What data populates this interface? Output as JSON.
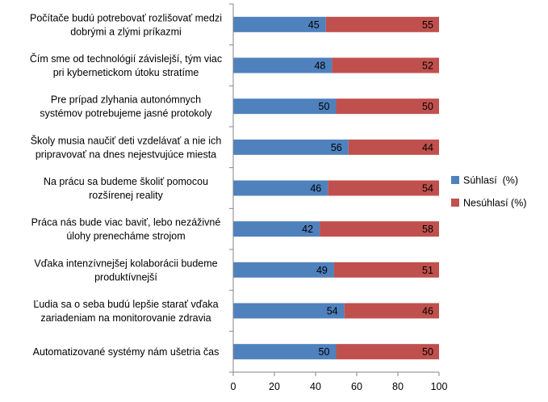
{
  "chart_data": {
    "type": "bar",
    "orientation": "horizontal",
    "stacked": true,
    "categories": [
      [
        "Počítače budú potrebovať rozlišovať medzi",
        "dobrými a zlými príkazmi"
      ],
      [
        "Čím sme od technológií závislejší, tým viac",
        "pri kybernetickom útoku stratíme"
      ],
      [
        "Pre prípad zlyhania autonómnych",
        "systémov potrebujeme jasné protokoly"
      ],
      [
        "Školy musia naučiť deti vzdelávať a nie ich",
        "pripravovať na dnes nejestvujúce miesta"
      ],
      [
        "Na prácu sa budeme školiť pomocou",
        "rozšírenej reality"
      ],
      [
        "Práca nás bude viac baviť, lebo nezáživné",
        "úlohy prenecháme strojom"
      ],
      [
        "Vďaka intenzívnejšej kolaborácii budeme",
        "produktívnejší"
      ],
      [
        "Ľudia sa o seba budú lepšie starať vďaka",
        "zariadeniam na monitorovanie zdravia"
      ],
      [
        "Automatizované systémy nám ušetria čas"
      ]
    ],
    "series": [
      {
        "name": "Súhlasí  (%)",
        "color": "#4f81bd",
        "values": [
          45,
          48,
          50,
          56,
          46,
          42,
          49,
          54,
          50
        ]
      },
      {
        "name": "Nesúhlasí (%)",
        "color": "#c0504d",
        "values": [
          55,
          52,
          50,
          44,
          54,
          58,
          51,
          46,
          50
        ]
      }
    ],
    "xlim": [
      0,
      100
    ],
    "xticks": [
      "0",
      "20",
      "40",
      "60",
      "80",
      "100"
    ],
    "grid": false,
    "legend_position": "right"
  }
}
